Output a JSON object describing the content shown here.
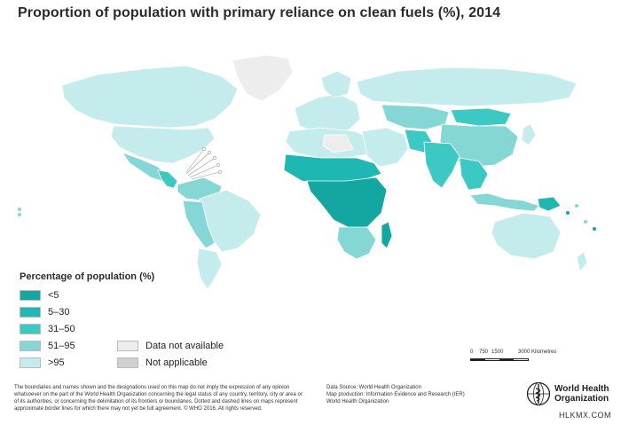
{
  "title": "Proportion of population with primary reliance on clean fuels (%), 2014",
  "colors": {
    "cat_lt5": "#14a6a0",
    "cat_5_30": "#1fb7b1",
    "cat_31_50": "#3cc8c3",
    "cat_51_95": "#84d7d5",
    "cat_gt95": "#c4ecec",
    "no_data": "#ededed",
    "not_applicable": "#cfcfcf",
    "ocean": "#ffffff",
    "border": "#ffffff"
  },
  "legend": {
    "title": "Percentage of population (%)",
    "items": [
      {
        "label": "<5",
        "color_key": "cat_lt5"
      },
      {
        "label": "5–30",
        "color_key": "cat_5_30"
      },
      {
        "label": "31–50",
        "color_key": "cat_31_50"
      },
      {
        "label": "51–95",
        "color_key": "cat_51_95"
      },
      {
        "label": ">95",
        "color_key": "cat_gt95"
      },
      {
        "label": "Data not available",
        "color_key": "no_data"
      },
      {
        "label": "Not applicable",
        "color_key": "not_applicable"
      }
    ]
  },
  "scale": {
    "labels": [
      "0",
      "750",
      "1500",
      "3000 Kilometres"
    ]
  },
  "disclaimer": "The boundaries and names shown and the designations used on this map do not imply the expression of any opinion whatsoever on the part of the World Health Organization concerning the legal status of any country, territory, city or area or of its authorities, or concerning the delimitation of its frontiers or boundaries. Dotted and dashed lines on maps represent approximate border lines for which there may not yet be full agreement. © WHO 2016. All rights reserved.",
  "source": {
    "line1": "Data Source: World Health Organization",
    "line2": "Map production: Information Evidence and Research (IER)",
    "line3": "World Health Organization"
  },
  "logo": {
    "line1": "World Health",
    "line2": "Organization"
  },
  "watermark": "HLKMX.COM"
}
